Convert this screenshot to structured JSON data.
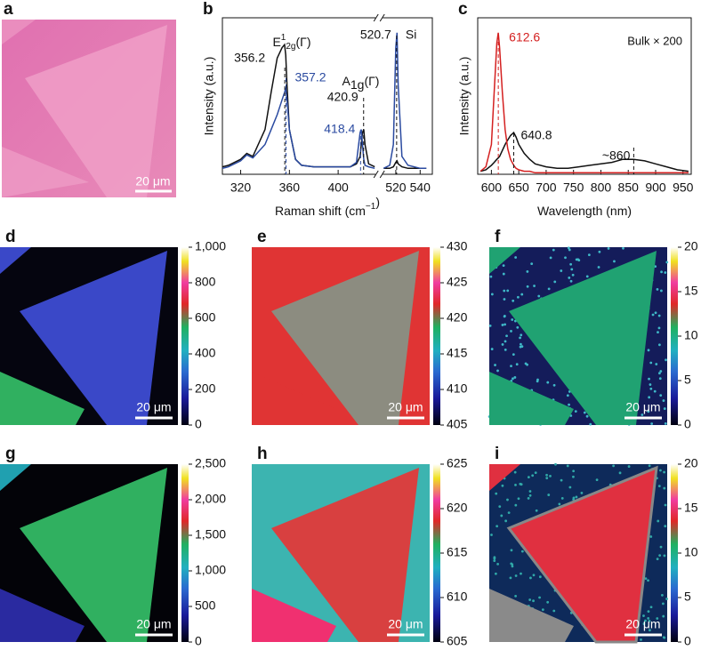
{
  "image": {
    "label": "a",
    "scale_bar": "20 μm"
  },
  "chart_data": [
    {
      "type": "line",
      "label": "b",
      "ylabel": "Intensity (a.u.)",
      "xlabel": [
        "Raman shift (cm",
        "−1",
        ")"
      ],
      "xlim": [
        305,
        550
      ],
      "xbreak": [
        430,
        510
      ],
      "xticks": [
        320,
        360,
        400,
        520,
        540
      ],
      "ylim": [
        0,
        1.05
      ],
      "x": [
        305,
        310,
        320,
        325,
        330,
        340,
        345,
        350,
        354,
        356,
        357,
        358,
        360,
        365,
        370,
        380,
        400,
        410,
        415,
        418,
        419,
        420,
        421,
        422,
        425,
        430,
        510,
        515,
        518,
        520,
        521,
        522,
        525,
        530,
        540,
        545
      ],
      "series": [
        {
          "color": "#111111",
          "values": [
            0.05,
            0.06,
            0.1,
            0.14,
            0.12,
            0.3,
            0.55,
            0.78,
            0.85,
            0.87,
            0.8,
            0.6,
            0.3,
            0.1,
            0.06,
            0.05,
            0.05,
            0.05,
            0.07,
            0.12,
            0.2,
            0.28,
            0.3,
            0.2,
            0.07,
            0.05,
            0.04,
            0.04,
            0.05,
            0.08,
            0.09,
            0.07,
            0.05,
            0.04,
            0.04,
            0.04
          ]
        },
        {
          "color": "#2a4aa0",
          "values": [
            0.04,
            0.05,
            0.09,
            0.13,
            0.11,
            0.2,
            0.3,
            0.4,
            0.5,
            0.55,
            0.58,
            0.5,
            0.3,
            0.1,
            0.06,
            0.05,
            0.05,
            0.05,
            0.08,
            0.28,
            0.3,
            0.2,
            0.1,
            0.06,
            0.05,
            0.04,
            0.04,
            0.06,
            0.2,
            0.85,
            0.95,
            0.6,
            0.12,
            0.06,
            0.04,
            0.04
          ]
        }
      ],
      "annotations": [
        {
          "value": 356.2,
          "color": "#111111"
        },
        {
          "value": 357.2,
          "color": "#2a4aa0"
        },
        {
          "value": 420.9,
          "color": "#111111"
        },
        {
          "value": 418.4,
          "color": "#2a4aa0"
        },
        {
          "value": 520.7,
          "color": "#111111"
        }
      ],
      "peaks": {
        "e2g": [
          "E",
          "1",
          "2g",
          "(Γ)"
        ],
        "a1g": [
          "A",
          "1g",
          "(Γ)"
        ],
        "si": "Si"
      }
    },
    {
      "type": "line",
      "label": "c",
      "ylabel": "Intensity (a.u.)",
      "xlabel": [
        "Wavelength (nm)"
      ],
      "xlim": [
        575,
        965
      ],
      "xticks": [
        600,
        650,
        700,
        750,
        800,
        850,
        900,
        950
      ],
      "ylim": [
        0,
        1.05
      ],
      "x": [
        580,
        590,
        600,
        605,
        610,
        612.6,
        615,
        620,
        625,
        630,
        635,
        640.8,
        645,
        650,
        660,
        670,
        680,
        700,
        720,
        740,
        760,
        780,
        800,
        820,
        840,
        860,
        880,
        900,
        920,
        940,
        960
      ],
      "series": [
        {
          "color": "#111111",
          "values": [
            0.02,
            0.03,
            0.06,
            0.08,
            0.1,
            0.11,
            0.12,
            0.16,
            0.2,
            0.23,
            0.26,
            0.28,
            0.25,
            0.2,
            0.14,
            0.1,
            0.07,
            0.05,
            0.04,
            0.04,
            0.05,
            0.06,
            0.07,
            0.08,
            0.1,
            0.1,
            0.09,
            0.07,
            0.05,
            0.03,
            0.02
          ]
        },
        {
          "color": "#d42020",
          "values": [
            0.02,
            0.05,
            0.2,
            0.55,
            0.88,
            0.95,
            0.85,
            0.55,
            0.3,
            0.17,
            0.1,
            0.06,
            0.04,
            0.03,
            0.02,
            0.02,
            0.01,
            0.01,
            0.01,
            0.01,
            0.01,
            0.01,
            0.01,
            0.01,
            0.01,
            0.01,
            0.01,
            0.01,
            0.01,
            0.01,
            0.01
          ]
        }
      ],
      "annotations": [
        {
          "value": 612.6,
          "color": "#d42020"
        },
        {
          "value": 640.8,
          "color": "#111111"
        },
        {
          "value": 860,
          "label": "~860",
          "color": "#111111"
        }
      ],
      "note": "Bulk × 200"
    },
    {
      "type": "map",
      "label": "d",
      "scale_bar": "20 μm",
      "ylim": [
        0,
        1000
      ],
      "yticks": [
        0,
        200,
        400,
        600,
        800,
        {
          "value": 1000,
          "label": "1,000"
        }
      ]
    },
    {
      "type": "map",
      "label": "e",
      "scale_bar": "20 μm",
      "ylim": [
        405,
        430
      ],
      "yticks": [
        405,
        410,
        415,
        420,
        425,
        430
      ]
    },
    {
      "type": "map",
      "label": "f",
      "scale_bar": "20 μm",
      "ylim": [
        0,
        20
      ],
      "yticks": [
        0,
        5,
        10,
        15,
        20
      ]
    },
    {
      "type": "map",
      "label": "g",
      "scale_bar": "20 μm",
      "ylim": [
        0,
        2500
      ],
      "yticks": [
        0,
        500,
        {
          "value": 1000,
          "label": "1,000"
        },
        {
          "value": 1500,
          "label": "1,500"
        },
        {
          "value": 2000,
          "label": "2,000"
        },
        {
          "value": 2500,
          "label": "2,500"
        }
      ]
    },
    {
      "type": "map",
      "label": "h",
      "scale_bar": "20 μm",
      "ylim": [
        605,
        625
      ],
      "yticks": [
        605,
        610,
        615,
        620,
        625
      ]
    },
    {
      "type": "map",
      "label": "i",
      "scale_bar": "20 μm",
      "ylim": [
        0,
        20
      ],
      "yticks": [
        0,
        5,
        10,
        15,
        20
      ]
    }
  ]
}
